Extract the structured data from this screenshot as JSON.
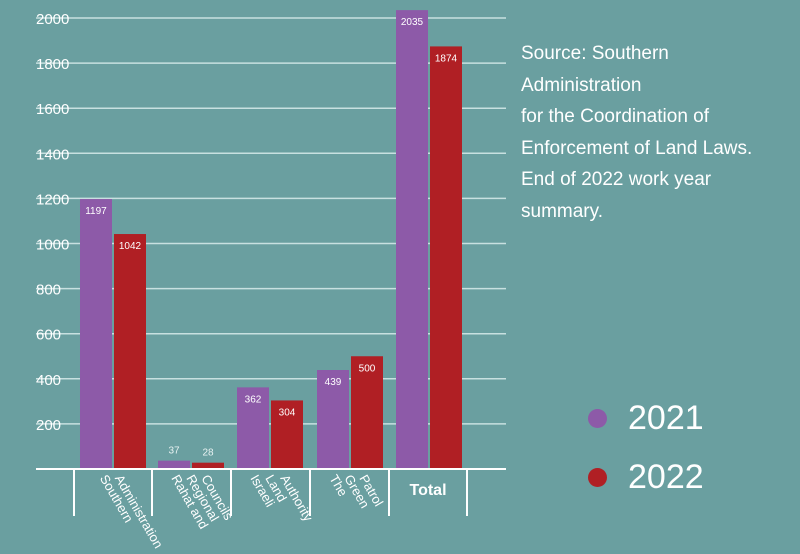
{
  "chart_data": {
    "type": "bar",
    "title": "",
    "xlabel": "",
    "ylabel": "",
    "ylim": [
      0,
      2000
    ],
    "y_ticks": [
      200,
      400,
      600,
      800,
      1000,
      1200,
      1400,
      1600,
      1800,
      2000
    ],
    "grid": true,
    "legend_position": "bottom-right",
    "categories": [
      [
        "Southern",
        "Administration"
      ],
      [
        "Rahat and",
        "Regional",
        "Councils"
      ],
      [
        "Israeli",
        "Land",
        "Authority"
      ],
      [
        "The",
        "Green",
        "Patrol"
      ],
      [
        "Total"
      ]
    ],
    "series": [
      {
        "name": "2021",
        "color": "#8d5aa8",
        "values": [
          1197,
          37,
          362,
          439,
          2035
        ]
      },
      {
        "name": "2022",
        "color": "#b01f24",
        "values": [
          1042,
          28,
          304,
          500,
          1874
        ]
      }
    ]
  },
  "source_note": [
    "Source: Southern Administration",
    "for the Coordination of",
    "Enforcement of Land Laws.",
    "End of 2022 work year",
    "summary."
  ],
  "legend": [
    {
      "label": "2021",
      "color": "#8d5aa8"
    },
    {
      "label": "2022",
      "color": "#b01f24"
    }
  ]
}
